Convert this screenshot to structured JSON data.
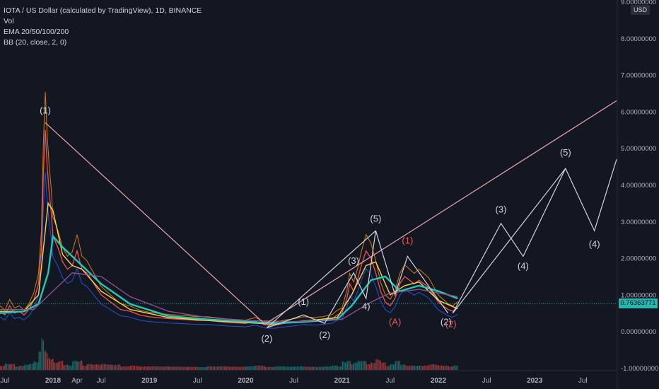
{
  "legend": {
    "symbol": "IOTA / US Dollar (calculated by TradingView), 1D, BINANCE",
    "vol": "Vol",
    "ema": "EMA 20/50/100/200",
    "bb": "BB (20, close, 2, 0)"
  },
  "axis": {
    "currency": "USD",
    "current_price": "0.76363771",
    "price_color": "#2bb5b0"
  },
  "chart_data": {
    "type": "line",
    "x_ticks": [
      "Jul",
      "2018",
      "Apr",
      "Jul",
      "2019",
      "Jul",
      "2020",
      "Jul",
      "2021",
      "Jul",
      "2022",
      "Jul",
      "2023",
      "Jul"
    ],
    "x_tick_dates": [
      2017.5,
      2018.0,
      2018.25,
      2018.5,
      2019.0,
      2019.5,
      2020.0,
      2020.5,
      2021.0,
      2021.5,
      2022.0,
      2022.5,
      2023.0,
      2023.5
    ],
    "y_ticks": [
      "9.00000000",
      "8.00000000",
      "7.00000000",
      "6.00000000",
      "5.00000000",
      "4.00000000",
      "3.00000000",
      "2.00000000",
      "1.00000000",
      "0.00000000",
      "-1.00000000"
    ],
    "ylim": [
      -1.05,
      9.05
    ],
    "xlim": [
      2017.45,
      2023.85
    ],
    "current_price": 0.76363771,
    "price_series": {
      "x": [
        2017.45,
        2017.5,
        2017.55,
        2017.6,
        2017.65,
        2017.7,
        2017.75,
        2017.8,
        2017.85,
        2017.88,
        2017.9,
        2017.92,
        2017.94,
        2017.96,
        2017.98,
        2018.0,
        2018.05,
        2018.1,
        2018.15,
        2018.2,
        2018.25,
        2018.3,
        2018.35,
        2018.4,
        2018.45,
        2018.5,
        2018.6,
        2018.7,
        2018.8,
        2018.9,
        2019.0,
        2019.2,
        2019.4,
        2019.5,
        2019.6,
        2019.8,
        2020.0,
        2020.1,
        2020.2,
        2020.3,
        2020.4,
        2020.5,
        2020.6,
        2020.7,
        2020.8,
        2020.9,
        2020.95,
        2021.0,
        2021.05,
        2021.08,
        2021.12,
        2021.16,
        2021.2,
        2021.25,
        2021.3,
        2021.35,
        2021.4,
        2021.45,
        2021.5,
        2021.55,
        2021.6,
        2021.65,
        2021.7,
        2021.75,
        2021.8,
        2021.85,
        2021.9,
        2021.95,
        2022.0,
        2022.05,
        2022.1,
        2022.15,
        2022.2
      ],
      "y": [
        0.55,
        0.45,
        0.7,
        0.5,
        0.55,
        0.45,
        0.6,
        0.85,
        1.3,
        2.3,
        4.3,
        5.5,
        4.5,
        3.8,
        3.3,
        2.6,
        2.3,
        1.9,
        1.7,
        1.8,
        2.2,
        1.7,
        1.6,
        1.4,
        1.2,
        1.0,
        0.8,
        0.6,
        0.55,
        0.45,
        0.4,
        0.35,
        0.32,
        0.3,
        0.3,
        0.25,
        0.22,
        0.28,
        0.18,
        0.17,
        0.22,
        0.25,
        0.3,
        0.28,
        0.3,
        0.35,
        0.45,
        0.5,
        0.9,
        1.3,
        1.1,
        1.4,
        1.8,
        2.2,
        2.0,
        1.6,
        1.1,
        0.8,
        0.7,
        0.9,
        1.3,
        1.5,
        1.4,
        1.3,
        1.4,
        1.3,
        1.2,
        1.0,
        0.8,
        0.7,
        0.6,
        0.55,
        0.65
      ]
    },
    "ema_series": [
      {
        "name": "EMA 20",
        "color": "#f5d54a",
        "x": [
          2017.45,
          2017.7,
          2017.85,
          2017.95,
          2018.0,
          2018.1,
          2018.2,
          2018.3,
          2018.5,
          2018.8,
          2019.2,
          2019.6,
          2020.0,
          2020.3,
          2020.6,
          2020.95,
          2021.1,
          2021.25,
          2021.35,
          2021.5,
          2021.65,
          2021.8,
          2022.0,
          2022.2
        ],
        "y": [
          0.55,
          0.55,
          1.0,
          3.5,
          3.3,
          2.1,
          1.8,
          1.7,
          1.1,
          0.6,
          0.38,
          0.3,
          0.24,
          0.2,
          0.28,
          0.38,
          1.0,
          1.8,
          1.9,
          1.0,
          1.25,
          1.35,
          0.85,
          0.62
        ]
      },
      {
        "name": "EMA 50",
        "color": "#26c6b8",
        "x": [
          2017.45,
          2017.7,
          2017.85,
          2017.95,
          2018.0,
          2018.1,
          2018.3,
          2018.5,
          2018.8,
          2019.2,
          2019.6,
          2020.0,
          2020.3,
          2020.6,
          2020.95,
          2021.1,
          2021.3,
          2021.45,
          2021.6,
          2021.8,
          2022.0,
          2022.2
        ],
        "y": [
          0.5,
          0.55,
          0.75,
          1.6,
          2.6,
          2.3,
          1.8,
          1.3,
          0.75,
          0.42,
          0.33,
          0.27,
          0.22,
          0.26,
          0.33,
          0.7,
          1.4,
          1.5,
          1.1,
          1.25,
          1.1,
          0.9
        ]
      },
      {
        "name": "EMA 100",
        "color": "#8b4f8b",
        "x": [
          2017.45,
          2017.8,
          2018.0,
          2018.2,
          2018.5,
          2018.8,
          2019.2,
          2019.6,
          2020.0,
          2020.5,
          2021.0,
          2021.3,
          2021.5,
          2021.8,
          2022.0,
          2022.2
        ],
        "y": [
          0.6,
          0.6,
          1.1,
          1.6,
          1.5,
          0.95,
          0.55,
          0.38,
          0.3,
          0.27,
          0.33,
          0.8,
          1.05,
          1.15,
          1.05,
          0.95
        ]
      }
    ],
    "wave_lines": [
      {
        "color": "#f0a3b3",
        "points": [
          [
            2017.92,
            5.7
          ],
          [
            2020.2,
            0.2
          ]
        ]
      },
      {
        "color": "#f0a3b3",
        "points": [
          [
            2020.2,
            0.2
          ],
          [
            2023.85,
            6.3
          ]
        ]
      },
      {
        "color": "#d1d4dc",
        "points": [
          [
            2020.22,
            0.1
          ],
          [
            2020.6,
            0.45
          ],
          [
            2020.82,
            0.22
          ],
          [
            2021.12,
            1.6
          ],
          [
            2021.25,
            0.9
          ],
          [
            2021.35,
            2.75
          ],
          [
            2021.55,
            1.0
          ],
          [
            2021.68,
            2.05
          ],
          [
            2022.1,
            0.5
          ]
        ]
      },
      {
        "color": "#d1d4dc",
        "points": [
          [
            2020.22,
            0.1
          ],
          [
            2021.35,
            2.75
          ]
        ]
      },
      {
        "color": "#d1d4dc",
        "points": [
          [
            2022.15,
            0.5
          ],
          [
            2022.65,
            2.95
          ],
          [
            2022.88,
            2.05
          ],
          [
            2023.32,
            4.45
          ]
        ]
      },
      {
        "color": "#d1d4dc",
        "points": [
          [
            2022.15,
            0.5
          ],
          [
            2023.32,
            4.45
          ],
          [
            2023.62,
            2.75
          ],
          [
            2023.85,
            4.7
          ]
        ]
      }
    ],
    "wave_labels": [
      {
        "text": "(1)",
        "x": 2017.92,
        "y": 5.95,
        "color": "#d1d4dc"
      },
      {
        "text": "(2)",
        "x": 2020.22,
        "y": -0.28,
        "color": "#d1d4dc"
      },
      {
        "text": "(1)",
        "x": 2020.6,
        "y": 0.73,
        "color": "#d1d4dc"
      },
      {
        "text": "(2)",
        "x": 2020.82,
        "y": -0.18,
        "color": "#d1d4dc"
      },
      {
        "text": "(3)",
        "x": 2021.12,
        "y": 1.85,
        "color": "#d1d4dc"
      },
      {
        "text": "4)",
        "x": 2021.25,
        "y": 0.6,
        "color": "#d1d4dc"
      },
      {
        "text": "(5)",
        "x": 2021.35,
        "y": 3.0,
        "color": "#d1d4dc"
      },
      {
        "text": "(A)",
        "x": 2021.55,
        "y": 0.18,
        "color": "#ef5350"
      },
      {
        "text": "(1)",
        "x": 2021.68,
        "y": 2.4,
        "color": "#ef5350"
      },
      {
        "text": "(2)",
        "x": 2022.08,
        "y": 0.18,
        "color": "#d1d4dc"
      },
      {
        "text": "(2)",
        "x": 2022.13,
        "y": 0.12,
        "color": "#ef5350"
      },
      {
        "text": "(3)",
        "x": 2022.65,
        "y": 3.25,
        "color": "#d1d4dc"
      },
      {
        "text": "(4)",
        "x": 2022.88,
        "y": 1.7,
        "color": "#d1d4dc"
      },
      {
        "text": "(5)",
        "x": 2023.32,
        "y": 4.8,
        "color": "#d1d4dc"
      },
      {
        "text": "(4)",
        "x": 2023.62,
        "y": 2.3,
        "color": "#d1d4dc"
      }
    ]
  }
}
